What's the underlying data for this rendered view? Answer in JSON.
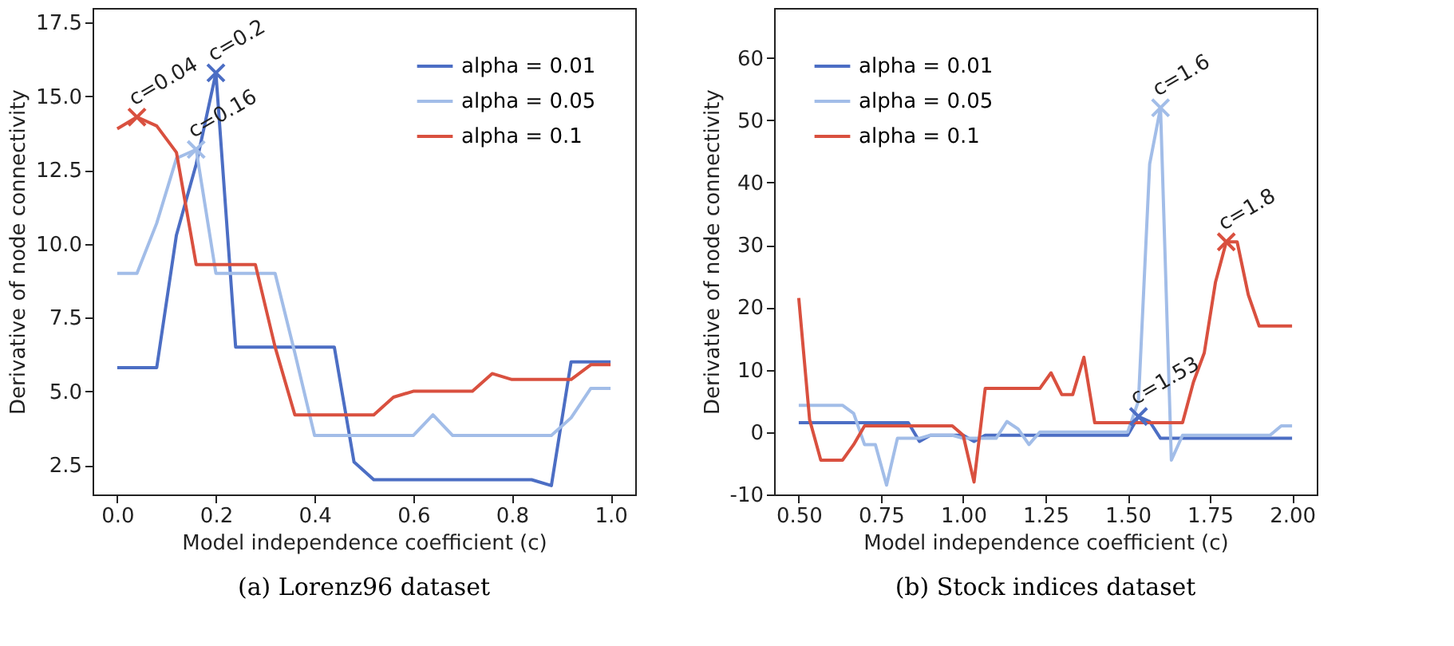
{
  "chart_data": [
    {
      "type": "line",
      "xlabel": "Model independence coefficient (c)",
      "ylabel": "Derivative of node connectivity",
      "x": [
        0,
        0.04,
        0.08,
        0.12,
        0.16,
        0.2,
        0.24,
        0.28,
        0.32,
        0.36,
        0.4,
        0.44,
        0.48,
        0.52,
        0.56,
        0.6,
        0.64,
        0.68,
        0.72,
        0.76,
        0.8,
        0.84,
        0.88,
        0.92,
        0.96,
        1.0
      ],
      "xlim": [
        -0.05,
        1.05
      ],
      "xticks": [
        {
          "value": 0,
          "label": "0.0"
        },
        0.2,
        0.4,
        0.6,
        0.8,
        {
          "value": 1,
          "label": "1.0"
        }
      ],
      "ylim": [
        1.5,
        18
      ],
      "yticks": [
        2.5,
        {
          "value": 5,
          "label": "5.0"
        },
        7.5,
        {
          "value": 10,
          "label": "10.0"
        },
        12.5,
        {
          "value": 15,
          "label": "15.0"
        },
        17.5
      ],
      "grid": false,
      "legend": "top right",
      "line_style": "solid",
      "marker": "none",
      "series": [
        {
          "name": "alpha = 0.01",
          "color": "#4c6ec4",
          "values": [
            5.8,
            5.8,
            5.8,
            10.3,
            12.7,
            15.8,
            6.5,
            6.5,
            6.5,
            6.5,
            6.5,
            6.5,
            2.6,
            2.0,
            2.0,
            2.0,
            2.0,
            2.0,
            2.0,
            2.0,
            2.0,
            2.0,
            1.8,
            6.0,
            6.0,
            6.0
          ]
        },
        {
          "name": "alpha = 0.05",
          "color": "#a2bde8",
          "values": [
            9.0,
            9.0,
            10.7,
            12.9,
            13.2,
            9.0,
            9.0,
            9.0,
            9.0,
            6.3,
            3.5,
            3.5,
            3.5,
            3.5,
            3.5,
            3.5,
            4.2,
            3.5,
            3.5,
            3.5,
            3.5,
            3.5,
            3.5,
            4.1,
            5.1,
            5.1
          ]
        },
        {
          "name": "alpha = 0.1",
          "color": "#d9503f",
          "values": [
            13.9,
            14.3,
            14.0,
            13.1,
            9.3,
            9.3,
            9.3,
            9.3,
            6.5,
            4.2,
            4.2,
            4.2,
            4.2,
            4.2,
            4.8,
            5.0,
            5.0,
            5.0,
            5.0,
            5.6,
            5.4,
            5.4,
            5.4,
            5.4,
            5.9,
            5.9
          ]
        },
        {
          "type": "scatter",
          "marker": "cross",
          "color": "#d9503f",
          "x": [
            0.04
          ],
          "values": [
            14.3
          ]
        },
        {
          "type": "scatter",
          "marker": "cross",
          "color": "#a2bde8",
          "x": [
            0.16
          ],
          "values": [
            13.2
          ]
        },
        {
          "type": "scatter",
          "marker": "cross",
          "color": "#4c6ec4",
          "x": [
            0.2
          ],
          "values": [
            15.8
          ]
        }
      ],
      "annotations": [
        {
          "text": "c=0.04",
          "x": 0.04,
          "y": 14.3
        },
        {
          "text": "c=0.16",
          "x": 0.16,
          "y": 13.2
        },
        {
          "text": "c=0.2",
          "x": 0.2,
          "y": 15.8
        },
        "(a) Lorenz96 dataset"
      ]
    },
    {
      "type": "line",
      "xlabel": "Model independence coefficient (c)",
      "ylabel": "Derivative of node connectivity",
      "x": [
        0.5,
        0.533,
        0.567,
        0.6,
        0.633,
        0.667,
        0.7,
        0.733,
        0.767,
        0.8,
        0.833,
        0.867,
        0.9,
        0.933,
        0.967,
        1.0,
        1.033,
        1.067,
        1.1,
        1.133,
        1.167,
        1.2,
        1.233,
        1.267,
        1.3,
        1.333,
        1.367,
        1.4,
        1.433,
        1.467,
        1.5,
        1.533,
        1.567,
        1.6,
        1.633,
        1.667,
        1.7,
        1.733,
        1.767,
        1.8,
        1.833,
        1.867,
        1.9,
        1.933,
        1.967,
        2.0
      ],
      "xlim": [
        0.425,
        2.075
      ],
      "xticks": [
        {
          "value": 0.5,
          "label": "0.50"
        },
        0.75,
        {
          "value": 1,
          "label": "1.00"
        },
        1.25,
        {
          "value": 1.5,
          "label": "1.50"
        },
        1.75,
        {
          "value": 2,
          "label": "2.00"
        }
      ],
      "ylim": [
        -10,
        68
      ],
      "yticks": [
        -10,
        0,
        10,
        20,
        30,
        40,
        50,
        60
      ],
      "grid": false,
      "legend": "top left",
      "line_style": "solid",
      "marker": "none",
      "series": [
        {
          "name": "alpha = 0.01",
          "color": "#4c6ec4",
          "values": [
            1.5,
            1.5,
            1.5,
            1.5,
            1.5,
            1.5,
            1.5,
            1.5,
            1.5,
            1.5,
            1.5,
            -1.5,
            -0.5,
            -0.5,
            -0.5,
            -0.5,
            -1.5,
            -0.5,
            -0.5,
            -0.5,
            -0.5,
            -0.5,
            -0.5,
            -0.5,
            -0.5,
            -0.5,
            -0.5,
            -0.5,
            -0.5,
            -0.5,
            -0.5,
            2.5,
            1.7,
            -1,
            -1,
            -1,
            -1,
            -1,
            -1,
            -1,
            -1,
            -1,
            -1,
            -1,
            -1,
            -1
          ]
        },
        {
          "name": "alpha = 0.05",
          "color": "#a2bde8",
          "values": [
            4.3,
            4.3,
            4.3,
            4.3,
            4.3,
            3,
            -2,
            -2,
            -8.5,
            -1,
            -1,
            -1,
            -0.5,
            -0.5,
            -0.5,
            -1,
            -1,
            -1,
            -1,
            1.7,
            0.5,
            -2,
            0,
            0,
            0,
            0,
            0,
            0,
            0,
            0,
            0,
            5,
            43,
            52,
            -4.5,
            -0.5,
            -0.5,
            -0.5,
            -0.5,
            -0.5,
            -0.5,
            -0.5,
            -0.5,
            -0.5,
            1,
            1
          ]
        },
        {
          "name": "alpha = 0.1",
          "color": "#d9503f",
          "values": [
            21.5,
            2,
            -4.5,
            -4.5,
            -4.5,
            -2,
            1,
            1,
            1,
            1,
            1,
            1,
            1,
            1,
            1,
            -0.5,
            -8,
            7,
            7,
            7,
            7,
            7,
            7,
            9.5,
            6,
            6,
            12,
            1.5,
            1.5,
            1.5,
            1.5,
            1.5,
            1.5,
            1.5,
            1.5,
            1.5,
            8,
            12.7,
            24,
            30.5,
            30.5,
            22,
            17,
            17,
            17,
            17
          ]
        },
        {
          "type": "scatter",
          "marker": "cross",
          "color": "#4c6ec4",
          "x": [
            1.533
          ],
          "values": [
            2.5
          ]
        },
        {
          "type": "scatter",
          "marker": "cross",
          "color": "#a2bde8",
          "x": [
            1.6
          ],
          "values": [
            52
          ]
        },
        {
          "type": "scatter",
          "marker": "cross",
          "color": "#d9503f",
          "x": [
            1.8
          ],
          "values": [
            30.5
          ]
        }
      ],
      "annotations": [
        {
          "text": "c=1.53",
          "x": 1.533,
          "y": 2.5
        },
        {
          "text": "c=1.6",
          "x": 1.6,
          "y": 52
        },
        {
          "text": "c=1.8",
          "x": 1.8,
          "y": 30.5
        },
        "(b) Stock indices dataset"
      ]
    }
  ]
}
